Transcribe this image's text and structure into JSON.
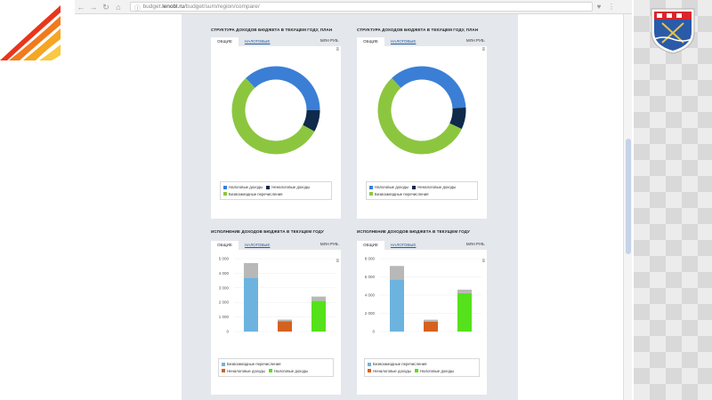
{
  "browser": {
    "url_prefix": "budget.",
    "url_domain": "lenobl.ru",
    "url_path": "/budget/sum/region/compare/",
    "back_icon": "arrow-left-icon",
    "forward_icon": "arrow-right-icon",
    "reload_icon": "reload-icon"
  },
  "colors": {
    "tax_blue": "#3a7fd5",
    "nontax_navy": "#0f2a4a",
    "transfers_green": "#8cc63f",
    "bar_blue": "#6db3df",
    "bar_orange": "#d5611f",
    "bar_green": "#55e11c",
    "bar_gray": "#b8b8b8"
  },
  "panels": [
    {
      "title": "Структура доходов бюджета в текущем году, план",
      "tabs": [
        "Общие",
        "Налоговые"
      ],
      "unit": "млн руб."
    },
    {
      "title": "Структура доходов бюджета в текущем году, план",
      "tabs": [
        "Общие",
        "Налоговые"
      ],
      "unit": "млн руб."
    },
    {
      "title": "Исполнение доходов бюджета в текущем году",
      "tabs": [
        "Общие",
        "Налоговые"
      ],
      "unit": "млн руб."
    },
    {
      "title": "Исполнение доходов бюджета в текущем году",
      "tabs": [
        "Общие",
        "Налоговые"
      ],
      "unit": "млн руб."
    }
  ],
  "donut_legend": [
    "Налоговые доходы",
    "Неналоговые доходы",
    "Безвозмездные перечисления"
  ],
  "bar_legend": [
    "Безвозмездные перечисления",
    "Неналоговые доходы",
    "Налоговые доходы"
  ],
  "chart_data": [
    {
      "type": "pie",
      "title": "Структура доходов бюджета в текущем году, план",
      "categories": [
        "Налоговые доходы",
        "Неналоговые доходы",
        "Безвозмездные перечисления"
      ],
      "values": [
        37,
        8,
        55
      ],
      "colors": [
        "#3a7fd5",
        "#0f2a4a",
        "#8cc63f"
      ]
    },
    {
      "type": "pie",
      "title": "Структура доходов бюджета в текущем году, план",
      "categories": [
        "Налоговые доходы",
        "Неналоговые доходы",
        "Безвозмездные перечисления"
      ],
      "values": [
        36,
        8,
        56
      ],
      "colors": [
        "#3a7fd5",
        "#0f2a4a",
        "#8cc63f"
      ]
    },
    {
      "type": "bar",
      "title": "Исполнение доходов бюджета в текущем году",
      "categories": [
        "Безвозмездные перечисления",
        "Неналоговые доходы",
        "Налоговые доходы"
      ],
      "y_ticks": [
        "0",
        "1 000",
        "2 000",
        "3 000",
        "4 000",
        "5 000"
      ],
      "ylim": [
        0,
        5000
      ],
      "series": [
        {
          "values": [
            3700,
            700,
            2100
          ],
          "colors": [
            "#6db3df",
            "#d5611f",
            "#55e11c"
          ]
        },
        {
          "values": [
            1000,
            120,
            300
          ],
          "colors": [
            "#b8b8b8",
            "#b8b8b8",
            "#b8b8b8"
          ]
        }
      ]
    },
    {
      "type": "bar",
      "title": "Исполнение доходов бюджета в текущем году",
      "categories": [
        "Безвозмездные перечисления",
        "Неналоговые доходы",
        "Налоговые доходы"
      ],
      "y_ticks": [
        "0",
        "2 000",
        "4 000",
        "6 000",
        "8 000"
      ],
      "ylim": [
        0,
        8000
      ],
      "series": [
        {
          "values": [
            5700,
            1100,
            4200
          ],
          "colors": [
            "#6db3df",
            "#d5611f",
            "#55e11c"
          ]
        },
        {
          "values": [
            1500,
            200,
            400
          ],
          "colors": [
            "#b8b8b8",
            "#b8b8b8",
            "#b8b8b8"
          ]
        }
      ]
    }
  ]
}
